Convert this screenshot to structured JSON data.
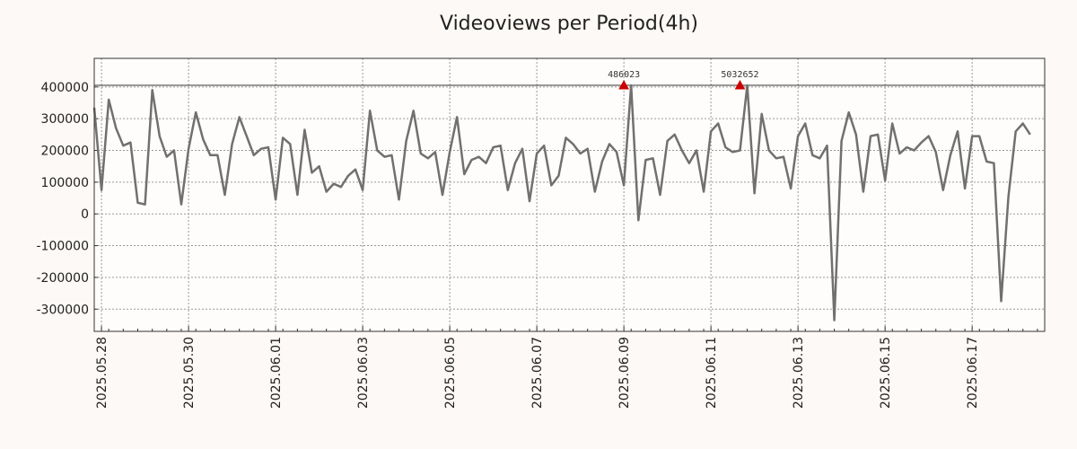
{
  "colors": {
    "background": "#fdf9f6",
    "plot_background": "#fffdfb",
    "line": "#707070",
    "grid": "#999999",
    "threshold_line": "#333333",
    "marker": "#cc0000"
  },
  "chart_data": {
    "type": "line",
    "title": "Videoviews per Period(4h)",
    "xlabel": "",
    "ylabel": "",
    "grid": true,
    "x_step_hours": 4,
    "x_start": "2025-05-27 20:00",
    "xlim": [
      "2025-05-27 20:00",
      "2025-06-18 16:00"
    ],
    "ylim": [
      -370000,
      490000
    ],
    "y_ticks": [
      400000,
      300000,
      200000,
      100000,
      0,
      -100000,
      -200000,
      -300000
    ],
    "y_tick_labels": [
      "400000",
      "300000",
      "200000",
      "100000",
      "0",
      "-100000",
      "-200000",
      "-300000"
    ],
    "x_ticks": [
      "2025.05.28",
      "2025.05.30",
      "2025.06.01",
      "2025.06.03",
      "2025.06.05",
      "2025.06.07",
      "2025.06.09",
      "2025.06.11",
      "2025.06.13",
      "2025.06.15",
      "2025.06.17"
    ],
    "reference_line": {
      "y": 405000
    },
    "annotations": [
      {
        "x": "2025-06-09 00:00",
        "label": "486023",
        "y": 405000
      },
      {
        "x": "2025-06-11 16:00",
        "label": "5032652",
        "y": 405000
      }
    ],
    "series": [
      {
        "values": [
          335000,
          75000,
          360000,
          270000,
          215000,
          225000,
          35000,
          30000,
          390000,
          245000,
          180000,
          200000,
          30000,
          205000,
          320000,
          235000,
          185000,
          185000,
          60000,
          220000,
          305000,
          245000,
          185000,
          205000,
          210000,
          45000,
          240000,
          220000,
          60000,
          265000,
          130000,
          150000,
          70000,
          95000,
          85000,
          120000,
          140000,
          75000,
          325000,
          200000,
          180000,
          185000,
          45000,
          230000,
          325000,
          190000,
          175000,
          195000,
          60000,
          195000,
          305000,
          125000,
          170000,
          180000,
          160000,
          210000,
          215000,
          75000,
          160000,
          205000,
          40000,
          190000,
          215000,
          90000,
          120000,
          240000,
          220000,
          190000,
          205000,
          70000,
          165000,
          220000,
          195000,
          90000,
          405000,
          -20000,
          170000,
          175000,
          60000,
          230000,
          250000,
          200000,
          160000,
          200000,
          70000,
          260000,
          285000,
          210000,
          195000,
          200000,
          405000,
          65000,
          315000,
          200000,
          175000,
          180000,
          80000,
          245000,
          285000,
          185000,
          175000,
          215000,
          -335000,
          230000,
          320000,
          250000,
          70000,
          245000,
          250000,
          105000,
          285000,
          190000,
          210000,
          200000,
          225000,
          245000,
          195000,
          75000,
          185000,
          260000,
          80000,
          245000,
          245000,
          165000,
          160000,
          -275000,
          55000,
          260000,
          285000,
          250000
        ]
      }
    ]
  }
}
